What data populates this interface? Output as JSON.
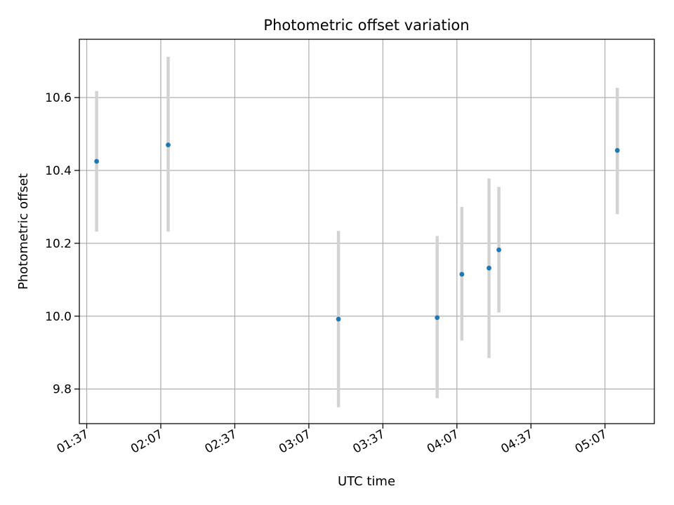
{
  "chart_data": {
    "type": "scatter",
    "title": "Photometric offset variation",
    "xlabel": "UTC time",
    "ylabel": "Photometric offset",
    "x_axis_type": "time",
    "xlim": [
      "01:34",
      "05:27"
    ],
    "ylim": [
      9.705,
      10.76
    ],
    "x_ticks": [
      "01:37",
      "02:07",
      "02:37",
      "03:07",
      "03:37",
      "04:07",
      "04:37",
      "05:07"
    ],
    "y_ticks": [
      9.8,
      10.0,
      10.2,
      10.4,
      10.6
    ],
    "y_tick_labels": [
      "9.8",
      "10.0",
      "10.2",
      "10.4",
      "10.6"
    ],
    "grid": true,
    "point_color": "#1f77b4",
    "errorbar_color": "#d3d3d3",
    "points": [
      {
        "x": "01:41",
        "y": 10.425,
        "ylow": 10.232,
        "yhigh": 10.618
      },
      {
        "x": "02:10",
        "y": 10.47,
        "ylow": 10.232,
        "yhigh": 10.712
      },
      {
        "x": "03:19",
        "y": 9.992,
        "ylow": 9.75,
        "yhigh": 10.234
      },
      {
        "x": "03:59",
        "y": 9.996,
        "ylow": 9.775,
        "yhigh": 10.22
      },
      {
        "x": "04:09",
        "y": 10.115,
        "ylow": 9.933,
        "yhigh": 10.3
      },
      {
        "x": "04:20",
        "y": 10.132,
        "ylow": 9.885,
        "yhigh": 10.378
      },
      {
        "x": "04:24",
        "y": 10.182,
        "ylow": 10.01,
        "yhigh": 10.355
      },
      {
        "x": "05:12",
        "y": 10.455,
        "ylow": 10.28,
        "yhigh": 10.627
      }
    ]
  }
}
